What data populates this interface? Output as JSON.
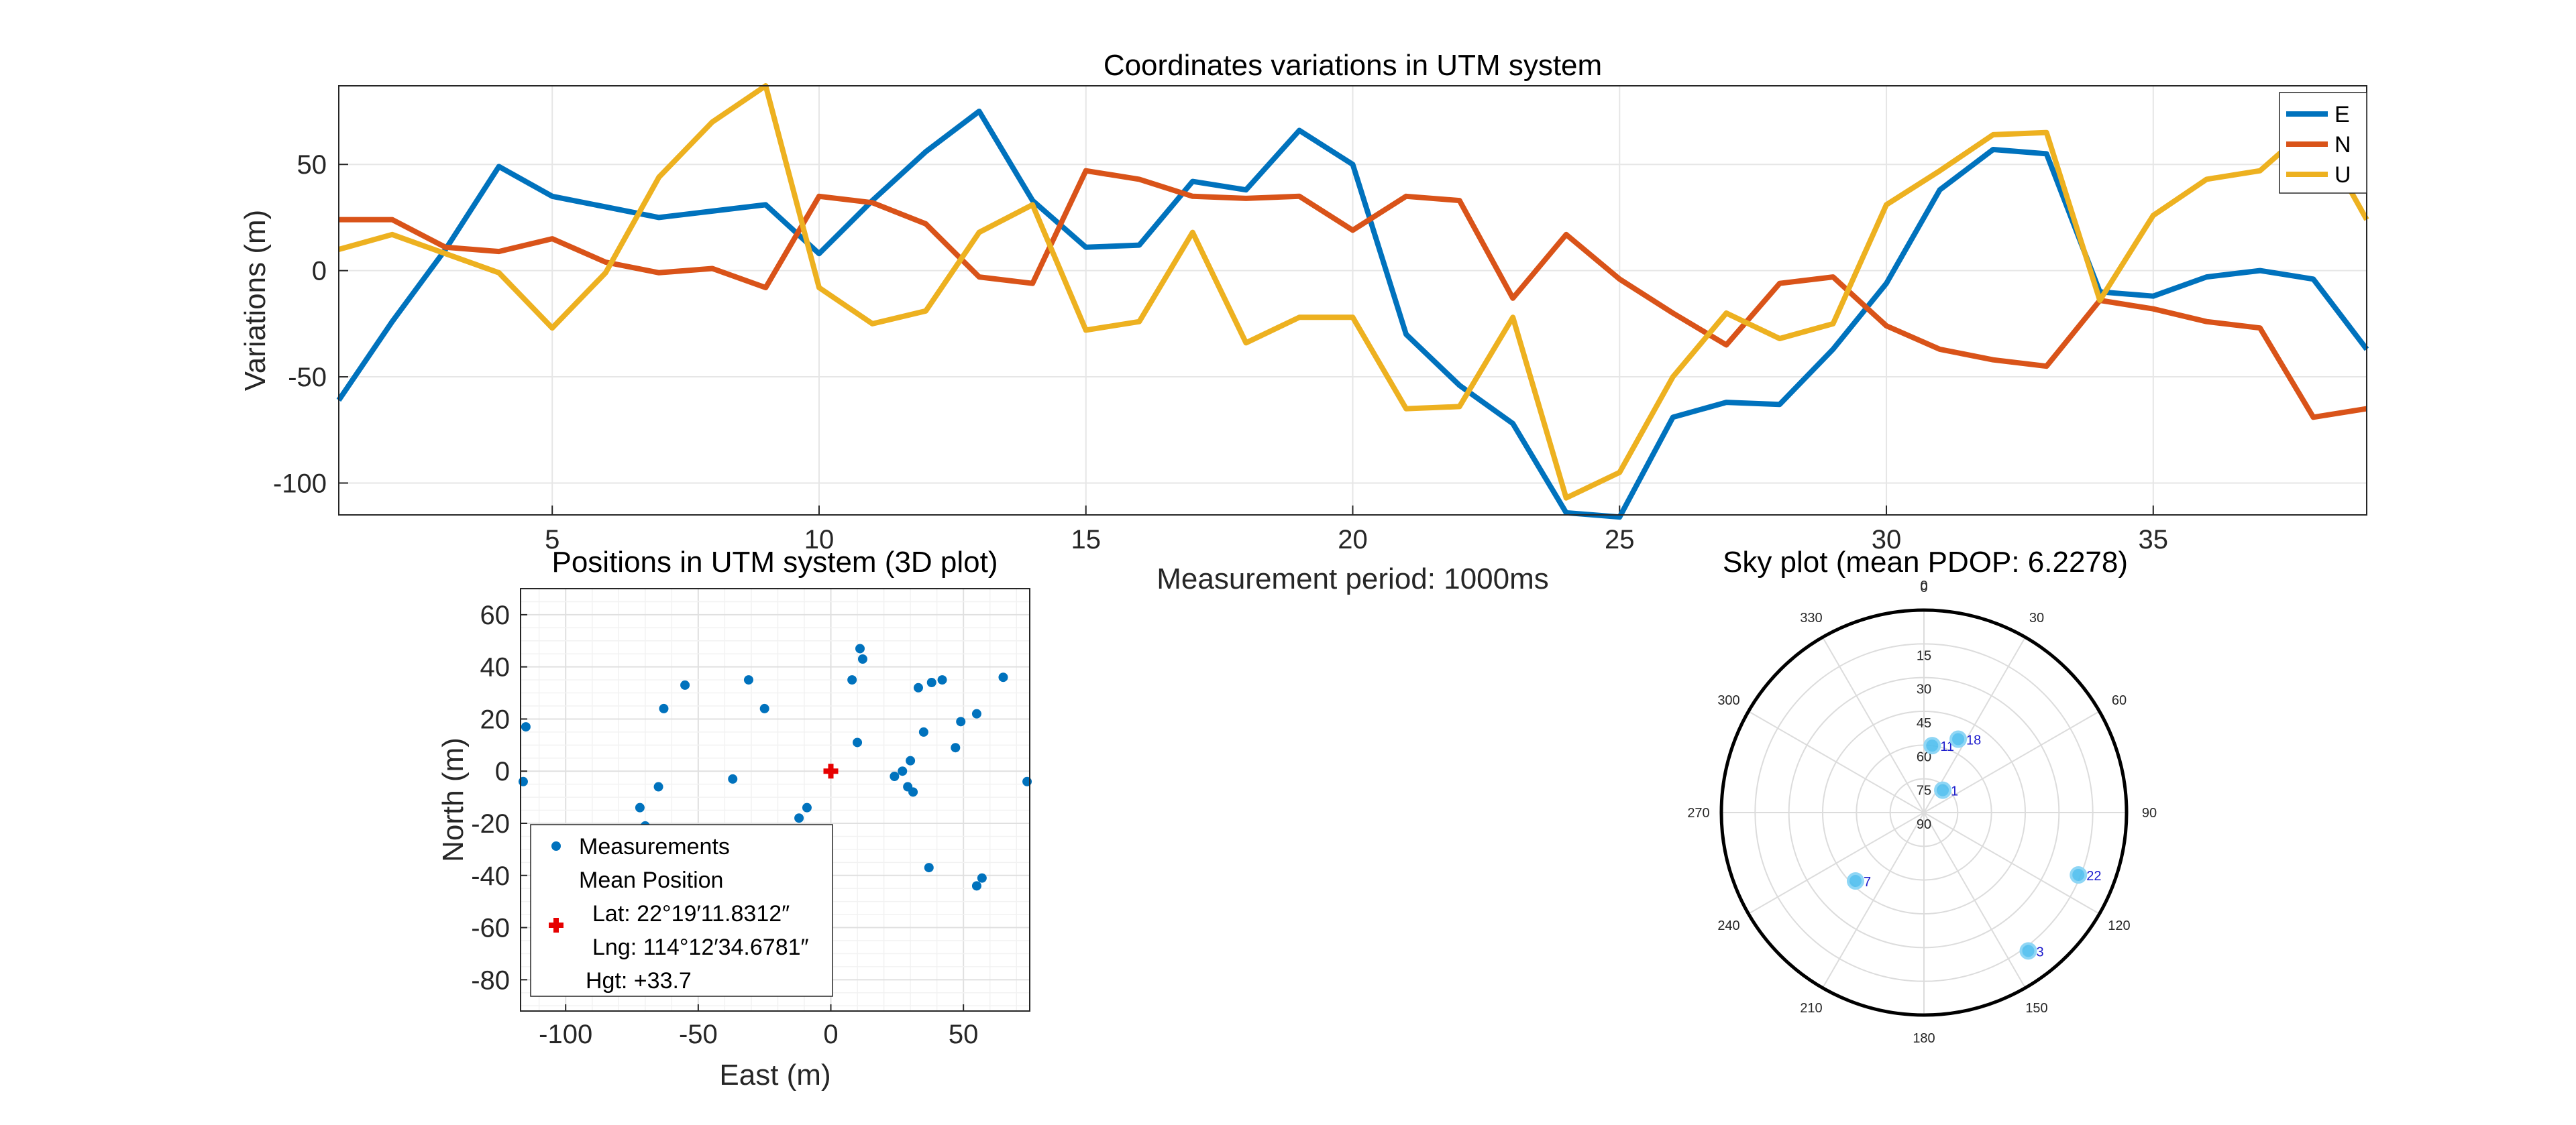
{
  "chart_data": [
    {
      "type": "line",
      "title": "Coordinates variations in UTM system",
      "xlabel": "Measurement period: 1000ms",
      "ylabel": "Variations (m)",
      "xlim": [
        1,
        39
      ],
      "ylim": [
        -115,
        87
      ],
      "xticks": [
        "5",
        "10",
        "15",
        "20",
        "25",
        "30",
        "35"
      ],
      "yticks": [
        "50",
        "0",
        "-50",
        "-100"
      ],
      "grid": true,
      "legend_position": "top-right",
      "x": [
        1,
        2,
        3,
        4,
        5,
        6,
        7,
        8,
        9,
        10,
        11,
        12,
        13,
        14,
        15,
        16,
        17,
        18,
        19,
        20,
        21,
        22,
        23,
        24,
        25,
        26,
        27,
        28,
        29,
        30,
        31,
        32,
        33,
        34,
        35,
        36,
        37,
        38,
        39
      ],
      "series": [
        {
          "name": "E",
          "color": "#0072BD",
          "values": [
            -61,
            -24,
            10,
            49,
            35,
            30,
            25,
            28,
            31,
            8,
            33,
            56,
            75,
            33,
            11,
            12,
            42,
            38,
            66,
            50,
            -30,
            -54,
            -72,
            -114,
            -116,
            -69,
            -62,
            -63,
            -37,
            -6,
            38,
            57,
            55,
            -10,
            -12,
            -3,
            0,
            -4,
            -37
          ]
        },
        {
          "name": "N",
          "color": "#D95319",
          "values": [
            24,
            24,
            11,
            9,
            15,
            4,
            -1,
            1,
            -8,
            35,
            32,
            22,
            -3,
            -6,
            47,
            43,
            35,
            34,
            35,
            19,
            35,
            33,
            -13,
            17,
            -4,
            -20,
            -35,
            -6,
            -3,
            -26,
            -37,
            -42,
            -45,
            -14,
            -18,
            -24,
            -27,
            -69,
            -65
          ]
        },
        {
          "name": "U",
          "color": "#EDB120",
          "values": [
            10,
            17,
            8,
            -1,
            -27,
            -1,
            44,
            70,
            87,
            -8,
            -25,
            -19,
            18,
            31,
            -28,
            -24,
            18,
            -34,
            -22,
            -22,
            -65,
            -64,
            -22,
            -107,
            -95,
            -50,
            -20,
            -32,
            -25,
            31,
            47,
            64,
            65,
            -14,
            26,
            43,
            47,
            69,
            24
          ]
        }
      ]
    },
    {
      "type": "scatter",
      "title": "Positions in UTM system (3D plot)",
      "xlabel": "East (m)",
      "ylabel": "North (m)",
      "xlim": [
        -117,
        75
      ],
      "ylim": [
        -92,
        70
      ],
      "xticks": [
        "-100",
        "-50",
        "0",
        "50"
      ],
      "yticks": [
        "60",
        "40",
        "20",
        "0",
        "-20",
        "-40",
        "-60",
        "-80"
      ],
      "legend": {
        "measurements": "Measurements",
        "mean_position": "Mean Position",
        "lat": "Lat: 22°19′11.8312″",
        "lng": "Lng: 114°12′34.6781″",
        "hgt": "Hgt: +33.7"
      },
      "marker_color": "#0072BD",
      "mean_marker_color": "#e60000",
      "mean": [
        0,
        0
      ],
      "points": [
        [
          -115,
          17
        ],
        [
          -116,
          -4
        ],
        [
          -72,
          -14
        ],
        [
          -70,
          -21
        ],
        [
          -65,
          -6
        ],
        [
          -63,
          24
        ],
        [
          -55,
          33
        ],
        [
          -37,
          -3
        ],
        [
          -31,
          35
        ],
        [
          -25,
          24
        ],
        [
          -12,
          -18
        ],
        [
          -9,
          -14
        ],
        [
          -4,
          -24
        ],
        [
          8,
          35
        ],
        [
          10,
          11
        ],
        [
          11,
          47
        ],
        [
          12,
          43
        ],
        [
          24,
          -2
        ],
        [
          27,
          0
        ],
        [
          29,
          -6
        ],
        [
          30,
          4
        ],
        [
          31,
          -8
        ],
        [
          33,
          32
        ],
        [
          35,
          15
        ],
        [
          37,
          -37
        ],
        [
          38,
          34
        ],
        [
          42,
          35
        ],
        [
          47,
          9
        ],
        [
          49,
          19
        ],
        [
          55,
          22
        ],
        [
          55,
          -44
        ],
        [
          57,
          -41
        ],
        [
          65,
          36
        ],
        [
          74,
          -4
        ]
      ]
    },
    {
      "type": "polar-scatter",
      "title": "Sky plot (mean PDOP: 6.2278)",
      "azimuth_labels": [
        "0",
        "30",
        "60",
        "90",
        "120",
        "150",
        "180",
        "210",
        "240",
        "270",
        "300",
        "330"
      ],
      "elevation_labels": [
        "0",
        "15",
        "30",
        "45",
        "60",
        "75",
        "90"
      ],
      "marker_color": "#4DBEEE",
      "satellites": [
        {
          "prn": "11",
          "azimuth": 7,
          "elevation": 60
        },
        {
          "prn": "18",
          "azimuth": 25,
          "elevation": 54
        },
        {
          "prn": "1",
          "azimuth": 40,
          "elevation": 77
        },
        {
          "prn": "22",
          "azimuth": 112,
          "elevation": 16
        },
        {
          "prn": "3",
          "azimuth": 143,
          "elevation": 13
        },
        {
          "prn": "7",
          "azimuth": 225,
          "elevation": 47
        }
      ]
    }
  ]
}
